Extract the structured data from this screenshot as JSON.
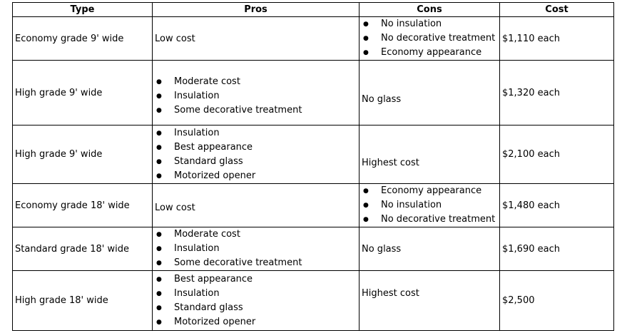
{
  "headers": [
    "Type",
    "Pros",
    "Cons",
    "Cost"
  ],
  "rows": [
    {
      "type": "Economy grade 9' wide",
      "pros": [
        "Low cost"
      ],
      "cons": [
        "No insulation",
        "No decorative treatment",
        "Economy appearance"
      ],
      "cost": "$1,110 each"
    },
    {
      "type": "High grade 9' wide",
      "pros": [
        "Moderate cost",
        "Insulation",
        "Some decorative treatment"
      ],
      "cons": [
        "No glass"
      ],
      "cost": "$1,320 each"
    },
    {
      "type": "High grade 9' wide",
      "pros": [
        "Insulation",
        "Best appearance",
        "Standard glass",
        "Motorized opener"
      ],
      "cons": [
        "Highest cost"
      ],
      "cost": "$2,100 each"
    },
    {
      "type": "Economy grade 18' wide",
      "pros": [
        "Low cost"
      ],
      "cons": [
        "Economy appearance",
        "No insulation",
        "No decorative treatment"
      ],
      "cost": "$1,480 each"
    },
    {
      "type": "Standard grade 18' wide",
      "pros": [
        "Moderate cost",
        "Insulation",
        "Some decorative treatment"
      ],
      "cons": [
        "No glass"
      ],
      "cost": "$1,690 each"
    },
    {
      "type": "High grade 18' wide",
      "pros": [
        "Best appearance",
        "Insulation",
        "Standard glass",
        "Motorized opener"
      ],
      "cons": [
        "Highest cost"
      ],
      "cost": "$2,500"
    }
  ]
}
